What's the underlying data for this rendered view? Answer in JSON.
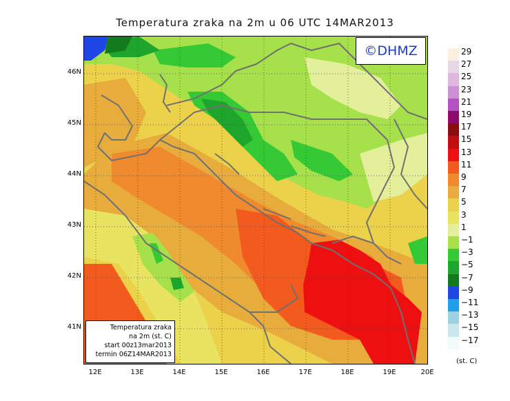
{
  "title": "Temperatura zraka na 2m u 06 UTC 14MAR2013",
  "watermark": "©DHMZ",
  "info": {
    "line1": "Temperatura zraka",
    "line2": "na 2m (st. C)",
    "line3": "start 00z13mar2013",
    "line4": "termin 06Z14MAR2013"
  },
  "lat_labels": [
    "46N",
    "45N",
    "44N",
    "43N",
    "42N",
    "41N"
  ],
  "lon_labels": [
    "12E",
    "13E",
    "14E",
    "15E",
    "16E",
    "17E",
    "18E",
    "19E",
    "20E"
  ],
  "legend": {
    "unit": "(st. C)",
    "labels": [
      "29",
      "27",
      "25",
      "23",
      "21",
      "19",
      "17",
      "15",
      "13",
      "11",
      "9",
      "7",
      "5",
      "3",
      "1",
      "−1",
      "−3",
      "−5",
      "−7",
      "−9",
      "−11",
      "−13",
      "−15",
      "−17"
    ],
    "colors": [
      "#fdeee0",
      "#e8d8e6",
      "#dfb6dd",
      "#cf8fd6",
      "#b552c2",
      "#8c0a6e",
      "#8c0d0d",
      "#c00e0e",
      "#ee1010",
      "#f25a1e",
      "#ef8a2e",
      "#e8ac3c",
      "#ebd24a",
      "#e9e362",
      "#e3ef9a",
      "#a6e04a",
      "#36c936",
      "#1ea52c",
      "#137a1e",
      "#1e46e6",
      "#1fa0e8",
      "#9ed0e6",
      "#c9e8ee",
      "#f2fafb"
    ]
  },
  "colors": {
    "green_dark": "#137a1e",
    "green_mid": "#1ea52c",
    "green": "#36c936",
    "green_light": "#a6e04a",
    "yellow_pale": "#e3ef9a",
    "yellow": "#e9e362",
    "yellow_mid": "#ebd24a",
    "orange_light": "#e8ac3c",
    "orange": "#ef8a2e",
    "orange_red": "#f25a1e",
    "red": "#ee1010",
    "blue": "#1e46e6",
    "coast": "#707070"
  }
}
